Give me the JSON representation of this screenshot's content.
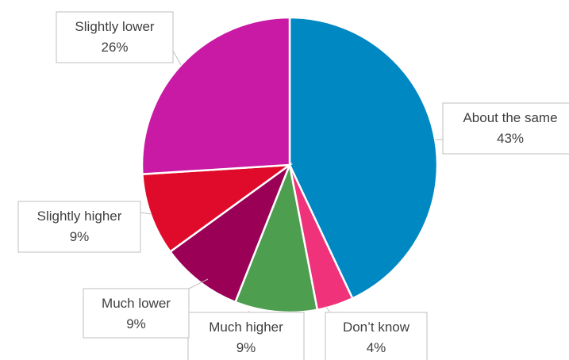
{
  "chart_data": {
    "type": "pie",
    "title": "",
    "slices": [
      {
        "label": "About the same",
        "value": 43,
        "value_label": "43%",
        "color": "#0088C2"
      },
      {
        "label": "Don’t know",
        "value": 4,
        "value_label": "4%",
        "color": "#F0327A"
      },
      {
        "label": "Much higher",
        "value": 9,
        "value_label": "9%",
        "color": "#4E9E50"
      },
      {
        "label": "Much lower",
        "value": 9,
        "value_label": "9%",
        "color": "#9B0057"
      },
      {
        "label": "Slightly higher",
        "value": 9,
        "value_label": "9%",
        "color": "#E00A2A"
      },
      {
        "label": "Slightly lower",
        "value": 26,
        "value_label": "26%",
        "color": "#C81AA4"
      }
    ],
    "start_angle_deg": 0,
    "direction": "clockwise",
    "legend": "none",
    "data_labels": "callout"
  }
}
